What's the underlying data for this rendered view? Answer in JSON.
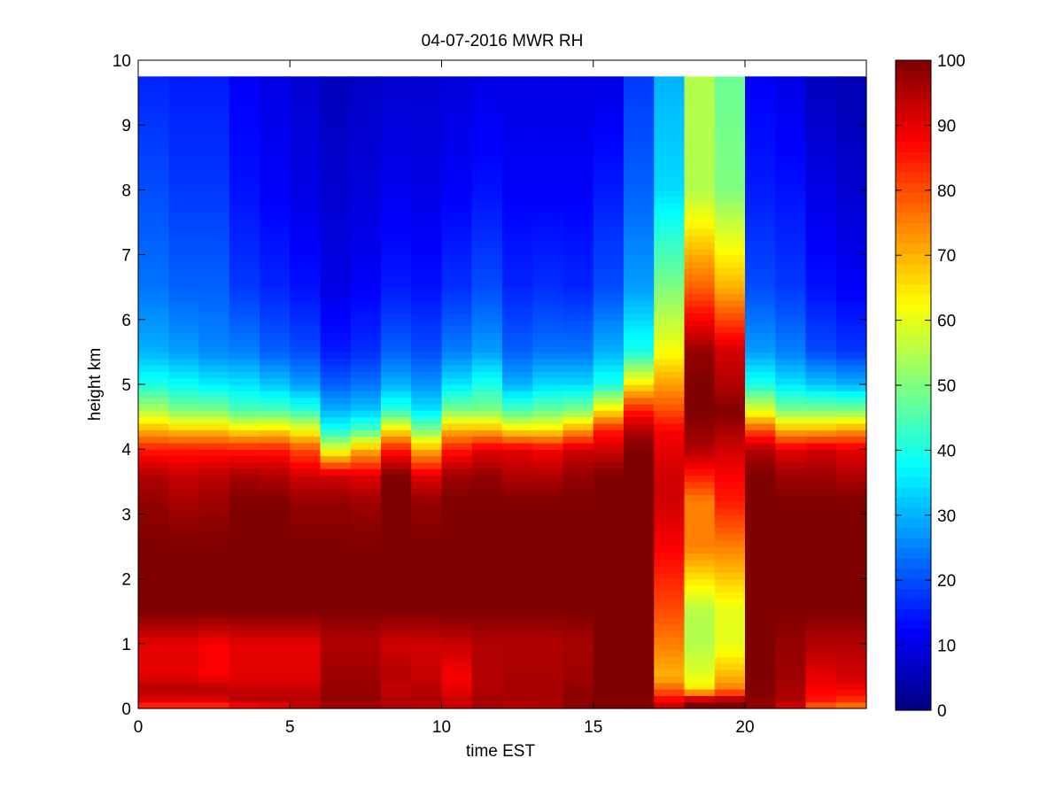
{
  "chart_data": {
    "type": "heatmap",
    "title": "04-07-2016 MWR RH",
    "xlabel": "time EST",
    "ylabel": "height km",
    "xlim": [
      0,
      24
    ],
    "ylim": [
      0,
      10
    ],
    "x_ticks": [
      "0",
      "5",
      "10",
      "15",
      "20"
    ],
    "y_ticks": [
      "0",
      "1",
      "2",
      "3",
      "4",
      "5",
      "6",
      "7",
      "8",
      "9",
      "10"
    ],
    "colormap": "jet",
    "clim": [
      0,
      100
    ],
    "colorbar_ticks": [
      "0",
      "10",
      "20",
      "30",
      "40",
      "50",
      "60",
      "70",
      "80",
      "90",
      "100"
    ],
    "grid": false,
    "x_centers": [
      0.5,
      1.5,
      2.5,
      3.5,
      4.5,
      5.5,
      6.5,
      7.5,
      8.5,
      9.5,
      10.5,
      11.5,
      12.5,
      13.5,
      14.5,
      15.5,
      16.5,
      17.5,
      18.5,
      19.5,
      20.5,
      21.5,
      22.5,
      23.5
    ],
    "profile_knots_km": [
      0,
      0.1,
      0.3,
      0.5,
      1.0,
      1.5,
      2.5,
      3.2,
      3.6,
      4.0,
      4.3,
      4.6,
      5.0,
      5.5,
      6.5,
      8.0,
      9.75
    ],
    "rh_profiles": [
      [
        80,
        90,
        95,
        90,
        90,
        100,
        100,
        98,
        95,
        85,
        70,
        55,
        40,
        30,
        24,
        20,
        16
      ],
      [
        80,
        90,
        95,
        90,
        90,
        100,
        100,
        96,
        93,
        85,
        68,
        50,
        38,
        28,
        22,
        18,
        15
      ],
      [
        80,
        90,
        95,
        88,
        88,
        100,
        100,
        97,
        94,
        85,
        68,
        50,
        36,
        26,
        22,
        18,
        15
      ],
      [
        82,
        95,
        93,
        90,
        90,
        100,
        100,
        100,
        96,
        85,
        65,
        45,
        35,
        25,
        18,
        14,
        12
      ],
      [
        85,
        95,
        93,
        90,
        90,
        100,
        100,
        100,
        95,
        85,
        66,
        45,
        32,
        22,
        16,
        12,
        10
      ],
      [
        92,
        95,
        93,
        90,
        90,
        100,
        100,
        98,
        92,
        80,
        62,
        42,
        28,
        20,
        14,
        10,
        8
      ],
      [
        95,
        98,
        98,
        97,
        95,
        100,
        100,
        98,
        92,
        60,
        40,
        30,
        22,
        15,
        10,
        8,
        6
      ],
      [
        95,
        98,
        98,
        97,
        95,
        100,
        100,
        97,
        90,
        70,
        45,
        32,
        24,
        17,
        12,
        9,
        7
      ],
      [
        95,
        96,
        93,
        95,
        92,
        100,
        100,
        100,
        100,
        85,
        65,
        42,
        30,
        22,
        15,
        11,
        8
      ],
      [
        93,
        96,
        95,
        93,
        92,
        100,
        100,
        98,
        90,
        70,
        50,
        35,
        27,
        20,
        14,
        10,
        8
      ],
      [
        92,
        93,
        90,
        88,
        93,
        100,
        100,
        100,
        97,
        85,
        70,
        50,
        35,
        25,
        17,
        12,
        9
      ],
      [
        95,
        97,
        95,
        95,
        95,
        100,
        100,
        100,
        98,
        90,
        70,
        50,
        40,
        28,
        20,
        14,
        10
      ],
      [
        93,
        96,
        96,
        96,
        95,
        100,
        100,
        100,
        95,
        90,
        65,
        45,
        30,
        22,
        16,
        12,
        10
      ],
      [
        95,
        96,
        96,
        96,
        95,
        100,
        100,
        100,
        95,
        88,
        65,
        48,
        34,
        24,
        17,
        12,
        10
      ],
      [
        98,
        99,
        98,
        97,
        96,
        100,
        100,
        100,
        98,
        92,
        72,
        50,
        34,
        24,
        16,
        12,
        10
      ],
      [
        100,
        100,
        100,
        100,
        100,
        100,
        100,
        100,
        100,
        92,
        85,
        65,
        40,
        30,
        20,
        15,
        10
      ],
      [
        100,
        100,
        100,
        100,
        100,
        100,
        100,
        100,
        100,
        100,
        95,
        85,
        65,
        40,
        28,
        22,
        18
      ],
      [
        95,
        90,
        78,
        70,
        75,
        80,
        88,
        92,
        92,
        90,
        88,
        80,
        72,
        62,
        50,
        34,
        30
      ],
      [
        100,
        100,
        65,
        60,
        55,
        55,
        75,
        75,
        85,
        95,
        98,
        100,
        100,
        98,
        78,
        55,
        55
      ],
      [
        100,
        100,
        75,
        70,
        60,
        60,
        75,
        85,
        88,
        92,
        96,
        100,
        95,
        92,
        70,
        50,
        48
      ],
      [
        98,
        98,
        100,
        100,
        100,
        100,
        100,
        100,
        100,
        95,
        80,
        60,
        40,
        28,
        20,
        15,
        12
      ],
      [
        90,
        95,
        96,
        97,
        98,
        100,
        100,
        100,
        97,
        90,
        70,
        50,
        35,
        25,
        18,
        14,
        10
      ],
      [
        75,
        85,
        88,
        90,
        95,
        100,
        100,
        100,
        97,
        92,
        70,
        50,
        32,
        20,
        14,
        10,
        6
      ],
      [
        72,
        82,
        88,
        92,
        95,
        100,
        100,
        100,
        95,
        90,
        72,
        50,
        30,
        18,
        12,
        8,
        5
      ]
    ]
  }
}
